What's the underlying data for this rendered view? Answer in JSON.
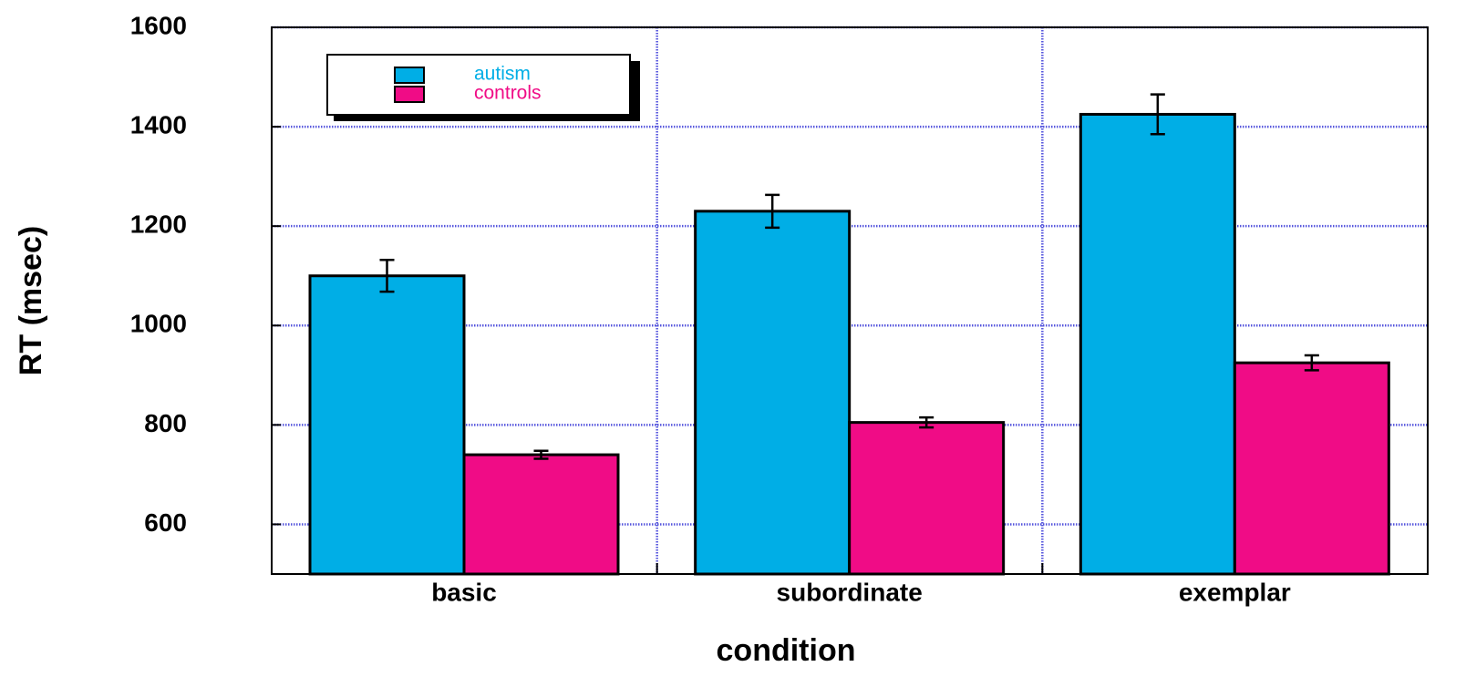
{
  "chart_data": {
    "type": "bar",
    "x_label": "condition",
    "y_label": "RT (msec)",
    "categories": [
      "basic",
      "subordinate",
      "exemplar"
    ],
    "series": [
      {
        "name": "autism",
        "color": "#00aee6",
        "values": [
          1100,
          1230,
          1425
        ],
        "errors": [
          32,
          33,
          40
        ]
      },
      {
        "name": "controls",
        "color": "#f00c86",
        "values": [
          740,
          805,
          925
        ],
        "errors": [
          8,
          10,
          15
        ]
      }
    ],
    "ylim": [
      500,
      1600
    ],
    "yticks": [
      600,
      800,
      1000,
      1200,
      1400,
      1600
    ],
    "grid": true,
    "legend": "upper left"
  }
}
